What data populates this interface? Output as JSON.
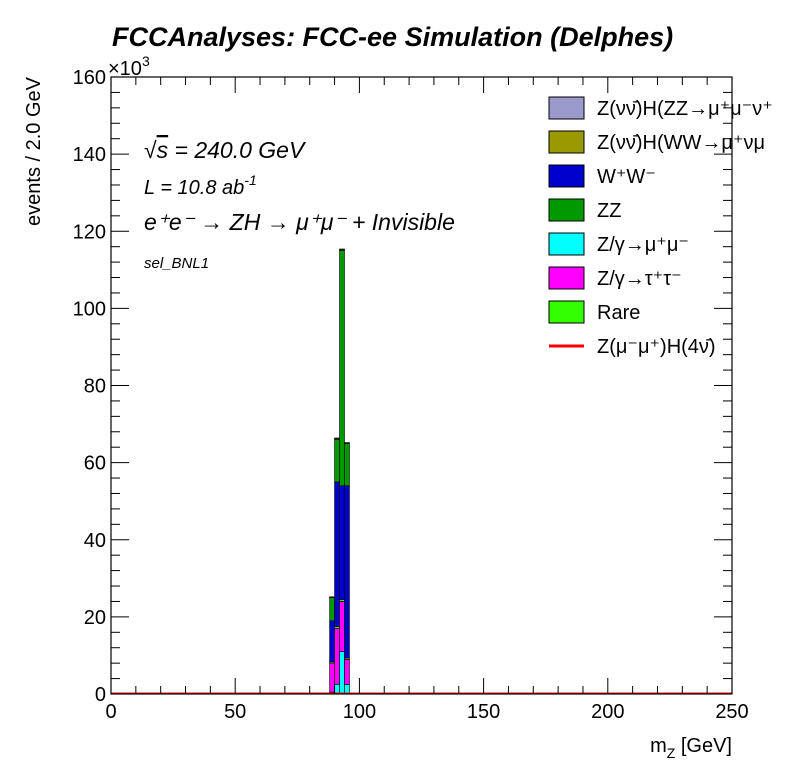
{
  "chart_data": {
    "type": "bar",
    "stacked": true,
    "title": "FCCAnalyses: FCC-ee Simulation (Delphes)",
    "xlabel": "m_Z [GeV]",
    "xlabel_main": "m",
    "xlabel_sub": "Z",
    "xlabel_unit": " [GeV]",
    "ylabel": "events / 2.0 GeV",
    "y_multiplier": "×10",
    "y_multiplier_exp": "3",
    "xlim": [
      0,
      250
    ],
    "ylim": [
      0,
      160
    ],
    "x_ticks": [
      0,
      50,
      100,
      150,
      200,
      250
    ],
    "y_ticks": [
      0,
      20,
      40,
      60,
      80,
      100,
      120,
      140,
      160
    ],
    "bin_width": 2.0,
    "annotations": {
      "sqrt_s": "= 240.0 GeV",
      "lumi_main": "L = 10.8 ab",
      "lumi_exp": "-1",
      "process": "e⁺e⁻ → ZH → μ⁺μ⁻ + Invisible",
      "selection": "sel_BNL1"
    },
    "bins": [
      88,
      90,
      92,
      94
    ],
    "series": [
      {
        "name": "Z/γ→μ⁺μ⁻",
        "color": "#00ffff",
        "values": [
          0.5,
          2.5,
          11,
          2.5
        ]
      },
      {
        "name": "Z/γ→τ⁺τ⁻",
        "color": "#ff00ff",
        "values": [
          7.5,
          14.5,
          13,
          6.5
        ]
      },
      {
        "name": "Rare",
        "color": "#33ff00",
        "values": [
          0.3,
          0.5,
          0.5,
          0.3
        ]
      },
      {
        "name": "W⁺W⁻",
        "color": "#0000cc",
        "values": [
          10.7,
          37.5,
          29.5,
          44.7
        ]
      },
      {
        "name": "ZZ",
        "color": "#009900",
        "values": [
          6,
          11,
          61,
          11
        ]
      },
      {
        "name": "Z(νν̄)H(ZZ→μ⁺μ⁻ν⁺",
        "color": "#9999cc",
        "values": [
          0.1,
          0.2,
          0.2,
          0.1
        ]
      },
      {
        "name": "Z(νν̄)H(WW→μ⁺νμ",
        "color": "#999900",
        "values": [
          0.1,
          0.2,
          0.2,
          0.1
        ]
      },
      {
        "name": "Z(μ⁻μ⁺)H(4ν̄)",
        "color": "#ff0000",
        "values": [
          0.05,
          0.1,
          0.1,
          0.05
        ],
        "line": true
      }
    ],
    "legend": {
      "placement": "top-right",
      "entries": [
        {
          "label": "Z(νν̄)H(ZZ→μ⁺μ⁻ν⁺",
          "color": "#9999cc",
          "kind": "box"
        },
        {
          "label": "Z(νν̄)H(WW→μ⁺νμ",
          "color": "#999900",
          "kind": "box"
        },
        {
          "label": "W⁺W⁻",
          "color": "#0000cc",
          "kind": "box"
        },
        {
          "label": "ZZ",
          "color": "#009900",
          "kind": "box"
        },
        {
          "label": "Z/γ→μ⁺μ⁻",
          "color": "#00ffff",
          "kind": "box"
        },
        {
          "label": "Z/γ→τ⁺τ⁻",
          "color": "#ff00ff",
          "kind": "box"
        },
        {
          "label": "Rare",
          "color": "#33ff00",
          "kind": "box"
        },
        {
          "label": "Z(μ⁻μ⁺)H(4ν̄)",
          "color": "#ff0000",
          "kind": "line"
        }
      ]
    },
    "grid": false
  }
}
